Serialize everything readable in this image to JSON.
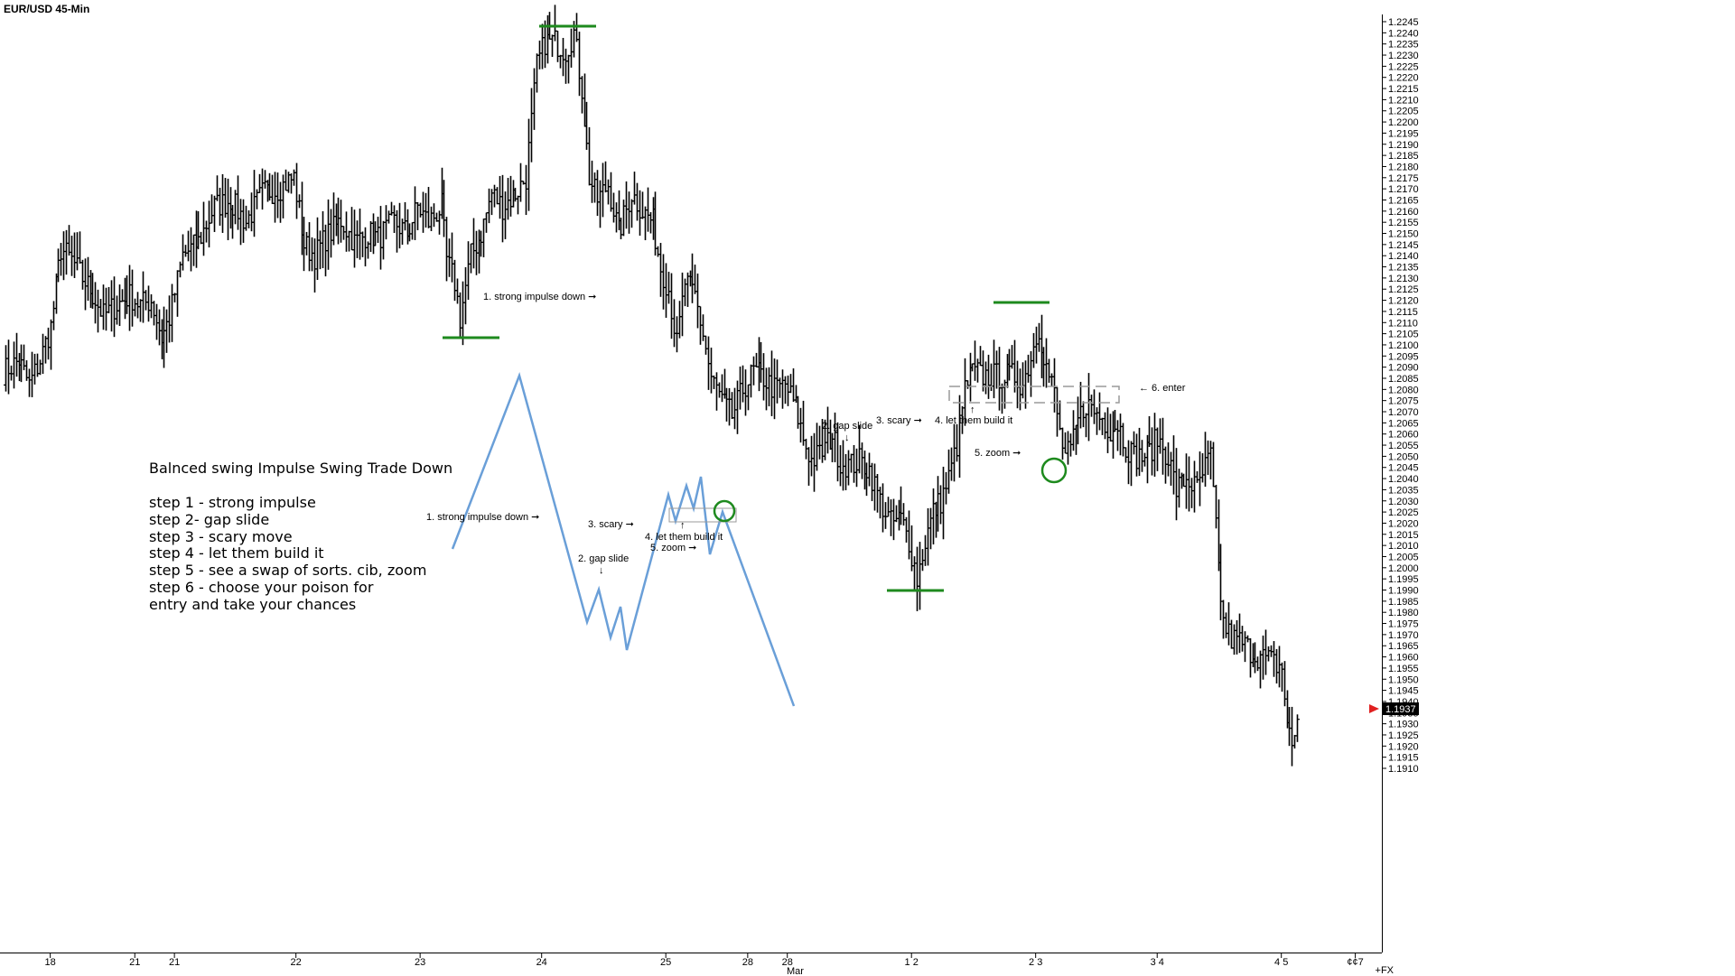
{
  "chart_data": {
    "type": "ohlc",
    "title": "EUR/USD 45-Min",
    "symbol": "EUR/USD",
    "timeframe": "45-Min",
    "last_price": "1.1937",
    "ylim": [
      1.191,
      1.2245
    ],
    "y_tick_step": 0.0005,
    "x_ticks": [
      {
        "label": "18",
        "bar": 18
      },
      {
        "label": "21",
        "bar": 50
      },
      {
        "label": "21",
        "bar": 65
      },
      {
        "label": "22",
        "bar": 111
      },
      {
        "label": "23",
        "bar": 158
      },
      {
        "label": "24",
        "bar": 204
      },
      {
        "label": "25",
        "bar": 251
      },
      {
        "label": "28",
        "bar": 282
      },
      {
        "label": "28",
        "bar": 297
      },
      {
        "label": "Mar",
        "bar": 300
      },
      {
        "label": "1 2",
        "bar": 344
      },
      {
        "label": "2 3",
        "bar": 391
      },
      {
        "label": "3 4",
        "bar": 437
      },
      {
        "label": "4 5",
        "bar": 484
      },
      {
        "label": "¢¢7",
        "bar": 512
      },
      {
        "label": "+FX",
        "bar": 523
      }
    ],
    "anchors": [
      [
        0,
        1.2088
      ],
      [
        6,
        1.2093
      ],
      [
        10,
        1.2082
      ],
      [
        14,
        1.2093
      ],
      [
        18,
        1.2108
      ],
      [
        22,
        1.2143
      ],
      [
        26,
        1.2138
      ],
      [
        30,
        1.213
      ],
      [
        33,
        1.2125
      ],
      [
        38,
        1.2113
      ],
      [
        43,
        1.2118
      ],
      [
        48,
        1.2122
      ],
      [
        52,
        1.2118
      ],
      [
        56,
        1.212
      ],
      [
        60,
        1.2103
      ],
      [
        63,
        1.2112
      ],
      [
        68,
        1.214
      ],
      [
        74,
        1.2146
      ],
      [
        80,
        1.2162
      ],
      [
        86,
        1.2165
      ],
      [
        92,
        1.2155
      ],
      [
        98,
        1.2168
      ],
      [
        104,
        1.217
      ],
      [
        110,
        1.2175
      ],
      [
        114,
        1.2145
      ],
      [
        118,
        1.214
      ],
      [
        122,
        1.2148
      ],
      [
        128,
        1.2156
      ],
      [
        133,
        1.2146
      ],
      [
        138,
        1.215
      ],
      [
        142,
        1.2148
      ],
      [
        148,
        1.2155
      ],
      [
        153,
        1.215
      ],
      [
        157,
        1.2162
      ],
      [
        161,
        1.2155
      ],
      [
        166,
        1.2162
      ],
      [
        168,
        1.2138
      ],
      [
        171,
        1.2128
      ],
      [
        173,
        1.2112
      ],
      [
        177,
        1.214
      ],
      [
        181,
        1.215
      ],
      [
        185,
        1.2168
      ],
      [
        189,
        1.2162
      ],
      [
        194,
        1.2168
      ],
      [
        198,
        1.2175
      ],
      [
        202,
        1.2225
      ],
      [
        205,
        1.2236
      ],
      [
        209,
        1.2236
      ],
      [
        213,
        1.2232
      ],
      [
        216,
        1.224
      ],
      [
        219,
        1.2215
      ],
      [
        222,
        1.2175
      ],
      [
        225,
        1.2165
      ],
      [
        229,
        1.2172
      ],
      [
        233,
        1.215
      ],
      [
        238,
        1.2168
      ],
      [
        242,
        1.216
      ],
      [
        246,
        1.2155
      ],
      [
        249,
        1.2135
      ],
      [
        252,
        1.2125
      ],
      [
        255,
        1.21
      ],
      [
        258,
        1.2128
      ],
      [
        262,
        1.2122
      ],
      [
        265,
        1.2105
      ],
      [
        268,
        1.2085
      ],
      [
        272,
        1.2075
      ],
      [
        276,
        1.2068
      ],
      [
        280,
        1.208
      ],
      [
        284,
        1.2088
      ],
      [
        288,
        1.2085
      ],
      [
        292,
        1.208
      ],
      [
        296,
        1.2082
      ],
      [
        300,
        1.2072
      ],
      [
        303,
        1.2058
      ],
      [
        306,
        1.2048
      ],
      [
        310,
        1.2052
      ],
      [
        314,
        1.206
      ],
      [
        317,
        1.2047
      ],
      [
        321,
        1.2046
      ],
      [
        324,
        1.2048
      ],
      [
        328,
        1.2044
      ],
      [
        332,
        1.203
      ],
      [
        336,
        1.202
      ],
      [
        340,
        1.2022
      ],
      [
        343,
        1.2012
      ],
      [
        346,
        1.1995
      ],
      [
        349,
        1.2012
      ],
      [
        352,
        1.2025
      ],
      [
        355,
        1.203
      ],
      [
        358,
        1.204
      ],
      [
        361,
        1.2055
      ],
      [
        364,
        1.208
      ],
      [
        367,
        1.2088
      ],
      [
        371,
        1.2086
      ],
      [
        375,
        1.2086
      ],
      [
        379,
        1.2086
      ],
      [
        383,
        1.2086
      ],
      [
        386,
        1.2082
      ],
      [
        389,
        1.2095
      ],
      [
        392,
        1.2108
      ],
      [
        395,
        1.209
      ],
      [
        398,
        1.2078
      ],
      [
        400,
        1.206
      ],
      [
        402,
        1.205
      ],
      [
        404,
        1.2052
      ],
      [
        407,
        1.2066
      ],
      [
        410,
        1.2074
      ],
      [
        413,
        1.207
      ],
      [
        416,
        1.2067
      ],
      [
        419,
        1.2062
      ],
      [
        422,
        1.2065
      ],
      [
        425,
        1.2055
      ],
      [
        428,
        1.205
      ],
      [
        431,
        1.205
      ],
      [
        434,
        1.2052
      ],
      [
        437,
        1.2058
      ],
      [
        441,
        1.205
      ],
      [
        444,
        1.2035
      ],
      [
        448,
        1.204
      ],
      [
        452,
        1.2035
      ],
      [
        455,
        1.2045
      ],
      [
        457,
        1.205
      ],
      [
        460,
        1.2
      ],
      [
        462,
        1.1975
      ],
      [
        465,
        1.1968
      ],
      [
        468,
        1.1967
      ],
      [
        472,
        1.1963
      ],
      [
        476,
        1.196
      ],
      [
        480,
        1.1958
      ],
      [
        484,
        1.1955
      ],
      [
        486,
        1.193
      ],
      [
        488,
        1.192
      ],
      [
        490,
        1.1932
      ]
    ]
  },
  "price_labels": [
    "1.2245",
    "1.2240",
    "1.2235",
    "1.2230",
    "1.2225",
    "1.2220",
    "1.2215",
    "1.2210",
    "1.2205",
    "1.2200",
    "1.2195",
    "1.2190",
    "1.2185",
    "1.2180",
    "1.2175",
    "1.2170",
    "1.2165",
    "1.2160",
    "1.2155",
    "1.2150",
    "1.2145",
    "1.2140",
    "1.2135",
    "1.2130",
    "1.2125",
    "1.2120",
    "1.2115",
    "1.2110",
    "1.2105",
    "1.2100",
    "1.2095",
    "1.2090",
    "1.2085",
    "1.2080",
    "1.2075",
    "1.2070",
    "1.2065",
    "1.2060",
    "1.2055",
    "1.2050",
    "1.2045",
    "1.2040",
    "1.2035",
    "1.2030",
    "1.2025",
    "1.2020",
    "1.2015",
    "1.2010",
    "1.2005",
    "1.2000",
    "1.1995",
    "1.1990",
    "1.1985",
    "1.1980",
    "1.1975",
    "1.1970",
    "1.1965",
    "1.1960",
    "1.1955",
    "1.1950",
    "1.1945",
    "1.1940",
    "1.1935",
    "1.1930",
    "1.1925",
    "1.1920",
    "1.1915",
    "1.1910"
  ],
  "annotations": {
    "price_strong_impulse": "1. strong impulse down ➞",
    "price_gap_slide": "2. gap slide",
    "price_scary": "3. scary ➞",
    "price_let_build": "4. let them build it",
    "price_zoom": "5. zoom ➞",
    "price_enter": "← 6. enter",
    "diag_strong_impulse": "1. strong impulse down ➞",
    "diag_gap_slide": "2. gap slide",
    "diag_scary": "3. scary ➞",
    "diag_let_build": "4. let them build it",
    "diag_zoom": "5. zoom ➞"
  },
  "notes": {
    "heading": "Balnced swing Impulse Swing Trade Down",
    "steps": [
      "step 1 - strong impulse",
      "step 2- gap slide",
      "step 3 - scary move",
      "step 4 - let them build it",
      "step 5 - see a swap of sorts. cib, zoom",
      "step 6 - choose your poison for",
      "entry and take your chances"
    ]
  },
  "colors": {
    "bars": "#000000",
    "levels": "#1e8a1e",
    "diagram": "#6a9fd8",
    "circle": "#1e8a1e",
    "last_price_bg": "#000000",
    "last_price_arrow": "#e02020"
  }
}
